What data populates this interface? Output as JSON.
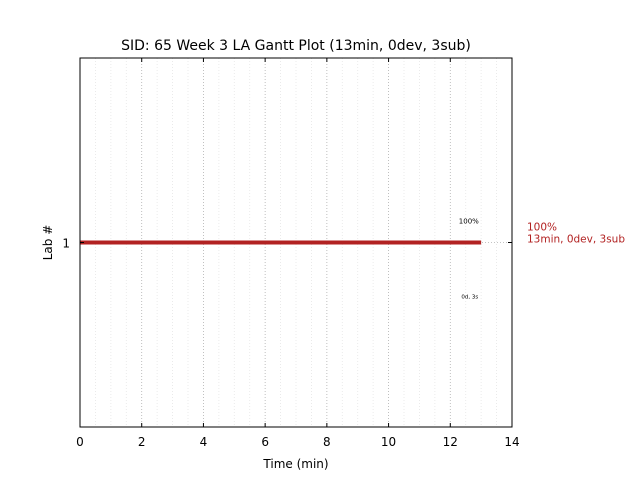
{
  "chart_data": {
    "type": "gantt",
    "title": "SID: 65 Week 3 LA Gantt Plot (13min, 0dev, 3sub)",
    "xlabel": "Time (min)",
    "ylabel": "Lab #",
    "xlim": [
      0,
      14
    ],
    "ylim": [
      0,
      2
    ],
    "x_ticks": [
      0,
      2,
      4,
      6,
      8,
      10,
      12,
      14
    ],
    "y_ticks": [
      1
    ],
    "grid": true,
    "series_color": "#b22222",
    "tasks": [
      {
        "lab": 1,
        "start": 0,
        "end": 13,
        "percent_label": "100%",
        "detail_label": "0d, 3s",
        "side_label_line1": "100%",
        "side_label_line2": "13min, 0dev, 3sub"
      }
    ]
  }
}
